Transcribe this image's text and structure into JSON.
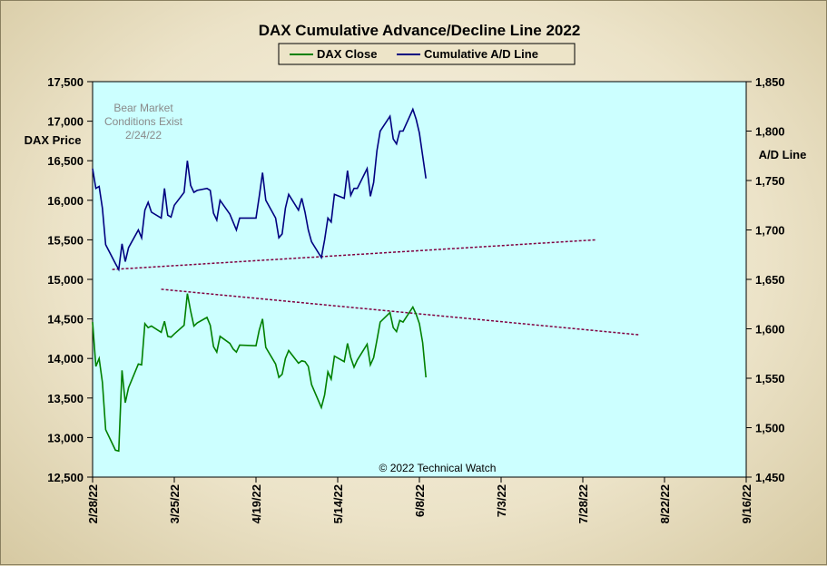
{
  "chart_data": {
    "type": "line",
    "title": "DAX Cumulative  Advance/Decline  Line  2022",
    "y_left_label": "DAX Price",
    "y_right_label": "A/D Line",
    "y_left_range": [
      12500,
      17500
    ],
    "y_right_range": [
      1450,
      1850
    ],
    "y_left_ticks": [
      "12,500",
      "13,000",
      "13,500",
      "14,000",
      "14,500",
      "15,000",
      "15,500",
      "16,000",
      "16,500",
      "17,000",
      "17,500"
    ],
    "y_right_ticks": [
      "1,450",
      "1,500",
      "1,550",
      "1,600",
      "1,650",
      "1,700",
      "1,750",
      "1,800",
      "1,850"
    ],
    "x_tick_labels": [
      "2/28/22",
      "3/25/22",
      "4/19/22",
      "5/14/22",
      "6/8/22",
      "7/3/22",
      "7/28/22",
      "8/22/22",
      "9/16/22"
    ],
    "x_range": [
      "2022-02-28",
      "2022-09-16"
    ],
    "legend": {
      "placement": "top-center",
      "entries": [
        "DAX Close",
        "Cumulative A/D Line"
      ]
    },
    "annotation": [
      "Bear Market",
      "Conditions  Exist",
      "2/24/22"
    ],
    "credit": "© 2022 Technical  Watch",
    "colors": {
      "plot_bg": "#ccffff",
      "dax": "#008000",
      "ad": "#000080",
      "trend": "#800040"
    },
    "series": [
      {
        "name": "DAX Close",
        "axis": "left",
        "points": [
          [
            "2022-02-28",
            14460
          ],
          [
            "2022-03-01",
            13900
          ],
          [
            "2022-03-02",
            14000
          ],
          [
            "2022-03-03",
            13700
          ],
          [
            "2022-03-04",
            13100
          ],
          [
            "2022-03-07",
            12840
          ],
          [
            "2022-03-08",
            12830
          ],
          [
            "2022-03-09",
            13850
          ],
          [
            "2022-03-10",
            13440
          ],
          [
            "2022-03-11",
            13630
          ],
          [
            "2022-03-14",
            13930
          ],
          [
            "2022-03-15",
            13920
          ],
          [
            "2022-03-16",
            14440
          ],
          [
            "2022-03-17",
            14390
          ],
          [
            "2022-03-18",
            14410
          ],
          [
            "2022-03-21",
            14330
          ],
          [
            "2022-03-22",
            14470
          ],
          [
            "2022-03-23",
            14280
          ],
          [
            "2022-03-24",
            14270
          ],
          [
            "2022-03-25",
            14310
          ],
          [
            "2022-03-28",
            14420
          ],
          [
            "2022-03-29",
            14820
          ],
          [
            "2022-03-30",
            14600
          ],
          [
            "2022-03-31",
            14410
          ],
          [
            "2022-04-01",
            14450
          ],
          [
            "2022-04-04",
            14520
          ],
          [
            "2022-04-05",
            14420
          ],
          [
            "2022-04-06",
            14150
          ],
          [
            "2022-04-07",
            14080
          ],
          [
            "2022-04-08",
            14280
          ],
          [
            "2022-04-11",
            14190
          ],
          [
            "2022-04-12",
            14120
          ],
          [
            "2022-04-13",
            14080
          ],
          [
            "2022-04-14",
            14170
          ],
          [
            "2022-04-19",
            14160
          ],
          [
            "2022-04-20",
            14360
          ],
          [
            "2022-04-21",
            14500
          ],
          [
            "2022-04-22",
            14140
          ],
          [
            "2022-04-25",
            13930
          ],
          [
            "2022-04-26",
            13760
          ],
          [
            "2022-04-27",
            13800
          ],
          [
            "2022-04-28",
            14000
          ],
          [
            "2022-04-29",
            14100
          ],
          [
            "2022-05-02",
            13940
          ],
          [
            "2022-05-03",
            13970
          ],
          [
            "2022-05-04",
            13960
          ],
          [
            "2022-05-05",
            13900
          ],
          [
            "2022-05-06",
            13670
          ],
          [
            "2022-05-09",
            13380
          ],
          [
            "2022-05-10",
            13540
          ],
          [
            "2022-05-11",
            13830
          ],
          [
            "2022-05-12",
            13740
          ],
          [
            "2022-05-13",
            14030
          ],
          [
            "2022-05-16",
            13960
          ],
          [
            "2022-05-17",
            14190
          ],
          [
            "2022-05-18",
            14010
          ],
          [
            "2022-05-19",
            13890
          ],
          [
            "2022-05-20",
            13980
          ],
          [
            "2022-05-23",
            14180
          ],
          [
            "2022-05-24",
            13920
          ],
          [
            "2022-05-25",
            14010
          ],
          [
            "2022-05-26",
            14230
          ],
          [
            "2022-05-27",
            14460
          ],
          [
            "2022-05-30",
            14580
          ],
          [
            "2022-05-31",
            14390
          ],
          [
            "2022-06-01",
            14340
          ],
          [
            "2022-06-02",
            14480
          ],
          [
            "2022-06-03",
            14460
          ],
          [
            "2022-06-06",
            14650
          ],
          [
            "2022-06-07",
            14560
          ],
          [
            "2022-06-08",
            14440
          ],
          [
            "2022-06-09",
            14200
          ],
          [
            "2022-06-10",
            13760
          ]
        ]
      },
      {
        "name": "Cumulative A/D Line",
        "axis": "right",
        "points": [
          [
            "2022-02-28",
            1762
          ],
          [
            "2022-03-01",
            1742
          ],
          [
            "2022-03-02",
            1744
          ],
          [
            "2022-03-03",
            1722
          ],
          [
            "2022-03-04",
            1685
          ],
          [
            "2022-03-07",
            1666
          ],
          [
            "2022-03-08",
            1660
          ],
          [
            "2022-03-09",
            1686
          ],
          [
            "2022-03-10",
            1668
          ],
          [
            "2022-03-11",
            1682
          ],
          [
            "2022-03-14",
            1700
          ],
          [
            "2022-03-15",
            1692
          ],
          [
            "2022-03-16",
            1720
          ],
          [
            "2022-03-17",
            1728
          ],
          [
            "2022-03-18",
            1718
          ],
          [
            "2022-03-21",
            1712
          ],
          [
            "2022-03-22",
            1742
          ],
          [
            "2022-03-23",
            1715
          ],
          [
            "2022-03-24",
            1713
          ],
          [
            "2022-03-25",
            1725
          ],
          [
            "2022-03-28",
            1738
          ],
          [
            "2022-03-29",
            1770
          ],
          [
            "2022-03-30",
            1745
          ],
          [
            "2022-03-31",
            1738
          ],
          [
            "2022-04-01",
            1740
          ],
          [
            "2022-04-04",
            1742
          ],
          [
            "2022-04-05",
            1740
          ],
          [
            "2022-04-06",
            1717
          ],
          [
            "2022-04-07",
            1710
          ],
          [
            "2022-04-08",
            1730
          ],
          [
            "2022-04-11",
            1716
          ],
          [
            "2022-04-12",
            1708
          ],
          [
            "2022-04-13",
            1700
          ],
          [
            "2022-04-14",
            1712
          ],
          [
            "2022-04-19",
            1712
          ],
          [
            "2022-04-20",
            1734
          ],
          [
            "2022-04-21",
            1758
          ],
          [
            "2022-04-22",
            1730
          ],
          [
            "2022-04-25",
            1712
          ],
          [
            "2022-04-26",
            1692
          ],
          [
            "2022-04-27",
            1696
          ],
          [
            "2022-04-28",
            1722
          ],
          [
            "2022-04-29",
            1736
          ],
          [
            "2022-05-02",
            1720
          ],
          [
            "2022-05-03",
            1732
          ],
          [
            "2022-05-04",
            1718
          ],
          [
            "2022-05-05",
            1700
          ],
          [
            "2022-05-06",
            1688
          ],
          [
            "2022-05-09",
            1672
          ],
          [
            "2022-05-10",
            1690
          ],
          [
            "2022-05-11",
            1712
          ],
          [
            "2022-05-12",
            1708
          ],
          [
            "2022-05-13",
            1736
          ],
          [
            "2022-05-16",
            1732
          ],
          [
            "2022-05-17",
            1760
          ],
          [
            "2022-05-18",
            1735
          ],
          [
            "2022-05-19",
            1742
          ],
          [
            "2022-05-20",
            1742
          ],
          [
            "2022-05-23",
            1762
          ],
          [
            "2022-05-24",
            1734
          ],
          [
            "2022-05-25",
            1748
          ],
          [
            "2022-05-26",
            1780
          ],
          [
            "2022-05-27",
            1800
          ],
          [
            "2022-05-30",
            1815
          ],
          [
            "2022-05-31",
            1792
          ],
          [
            "2022-06-01",
            1787
          ],
          [
            "2022-06-02",
            1800
          ],
          [
            "2022-06-03",
            1800
          ],
          [
            "2022-06-06",
            1822
          ],
          [
            "2022-06-07",
            1812
          ],
          [
            "2022-06-08",
            1798
          ],
          [
            "2022-06-09",
            1775
          ],
          [
            "2022-06-10",
            1752
          ]
        ]
      }
    ],
    "trendlines": [
      {
        "axis": "right",
        "from": [
          "2022-03-06",
          1660
        ],
        "to": [
          "2022-08-01",
          1690
        ]
      },
      {
        "axis": "right",
        "from": [
          "2022-03-21",
          1640
        ],
        "to": [
          "2022-08-14",
          1594
        ]
      }
    ]
  }
}
